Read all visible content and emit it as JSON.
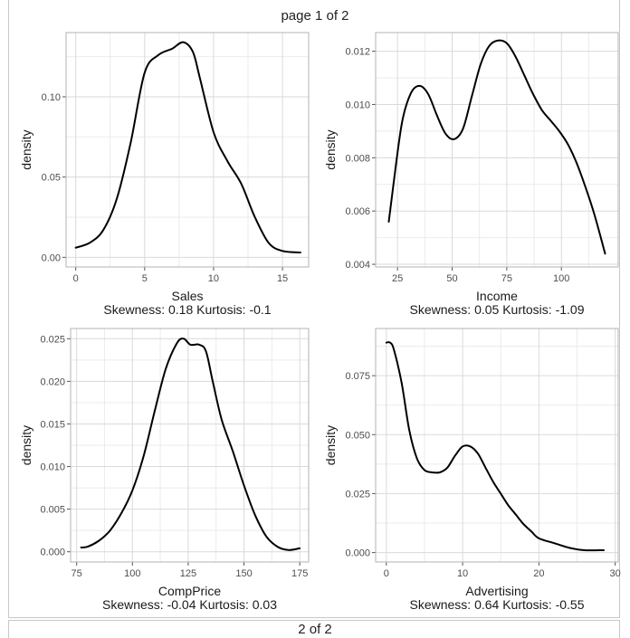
{
  "page": {
    "title": "page 1 of 2",
    "next_page_label": "2 of 2"
  },
  "chart_data": [
    {
      "type": "line",
      "title": "",
      "xlabel": "Sales",
      "ylabel": "density",
      "subtitle": "Skewness: 0.18 Kurtosis: -0.1",
      "xlim": [
        -0.7,
        16.9
      ],
      "ylim": [
        -0.006,
        0.14
      ],
      "xticks": [
        0,
        5,
        10,
        15
      ],
      "xtick_labels": [
        "0",
        "5",
        "10",
        "15"
      ],
      "yticks": [
        0.0,
        0.05,
        0.1
      ],
      "ytick_labels": [
        "0.00",
        "0.05",
        "0.10"
      ],
      "x": [
        0,
        1,
        2,
        3,
        4,
        5,
        6,
        7,
        7.8,
        8.5,
        9,
        10,
        11,
        12,
        13,
        14,
        15,
        16.3
      ],
      "y": [
        0.006,
        0.009,
        0.017,
        0.037,
        0.072,
        0.115,
        0.126,
        0.13,
        0.134,
        0.128,
        0.112,
        0.078,
        0.06,
        0.046,
        0.025,
        0.009,
        0.004,
        0.003
      ]
    },
    {
      "type": "line",
      "title": "",
      "xlabel": "Income",
      "ylabel": "density",
      "subtitle": "Skewness: 0.05 Kurtosis: -1.09",
      "xlim": [
        15,
        126
      ],
      "ylim": [
        0.0039,
        0.0127
      ],
      "xticks": [
        25,
        50,
        75,
        100
      ],
      "xtick_labels": [
        "25",
        "50",
        "75",
        "100"
      ],
      "yticks": [
        0.004,
        0.006,
        0.008,
        0.01,
        0.012
      ],
      "ytick_labels": [
        "0.004",
        "0.006",
        "0.008",
        "0.010",
        "0.012"
      ],
      "x": [
        21,
        23,
        27,
        31,
        35,
        39,
        43,
        47,
        51,
        55,
        59,
        63,
        67,
        71,
        75,
        79,
        83,
        87,
        91,
        95,
        99,
        103,
        107,
        111,
        115,
        120
      ],
      "y": [
        0.0056,
        0.0069,
        0.0093,
        0.0104,
        0.0107,
        0.0104,
        0.0096,
        0.0089,
        0.0087,
        0.0091,
        0.0103,
        0.0115,
        0.0122,
        0.0124,
        0.0123,
        0.0118,
        0.0111,
        0.0104,
        0.0098,
        0.0094,
        0.009,
        0.0085,
        0.0078,
        0.0069,
        0.0059,
        0.0044
      ]
    },
    {
      "type": "line",
      "title": "",
      "xlabel": "CompPrice",
      "ylabel": "density",
      "subtitle": "Skewness: -0.04 Kurtosis: 0.03",
      "xlim": [
        72.3,
        179
      ],
      "ylim": [
        -0.0012,
        0.0262
      ],
      "xticks": [
        75,
        100,
        125,
        150,
        175
      ],
      "xtick_labels": [
        "75",
        "100",
        "125",
        "150",
        "175"
      ],
      "yticks": [
        0.0,
        0.005,
        0.01,
        0.015,
        0.02,
        0.025
      ],
      "ytick_labels": [
        "0.000",
        "0.005",
        "0.010",
        "0.015",
        "0.020",
        "0.025"
      ],
      "x": [
        77,
        80,
        85,
        90,
        95,
        100,
        105,
        110,
        115,
        120,
        123,
        126,
        130,
        133,
        136,
        140,
        145,
        150,
        155,
        160,
        165,
        170,
        175
      ],
      "y": [
        0.0005,
        0.0006,
        0.0013,
        0.0025,
        0.0045,
        0.0072,
        0.0112,
        0.0165,
        0.0215,
        0.0245,
        0.025,
        0.0243,
        0.0243,
        0.0235,
        0.02,
        0.0155,
        0.0118,
        0.0078,
        0.0043,
        0.0018,
        0.0006,
        0.0002,
        0.0004
      ]
    },
    {
      "type": "line",
      "title": "",
      "xlabel": "Advertising",
      "ylabel": "density",
      "subtitle": "Skewness: 0.64 Kurtosis: -0.55",
      "xlim": [
        -1.4,
        30.4
      ],
      "ylim": [
        -0.004,
        0.095
      ],
      "xticks": [
        0,
        10,
        20,
        30
      ],
      "xtick_labels": [
        "0",
        "10",
        "20",
        "30"
      ],
      "yticks": [
        0.0,
        0.025,
        0.05,
        0.075
      ],
      "ytick_labels": [
        "0.000",
        "0.025",
        "0.050",
        "0.075"
      ],
      "x": [
        0,
        0.5,
        1,
        2,
        3,
        4,
        5,
        6,
        7,
        8,
        9,
        10,
        11,
        12,
        13,
        14,
        15,
        16,
        17,
        18,
        19,
        20,
        22,
        24,
        26,
        28.5
      ],
      "y": [
        0.089,
        0.089,
        0.086,
        0.072,
        0.052,
        0.04,
        0.035,
        0.034,
        0.034,
        0.036,
        0.041,
        0.045,
        0.045,
        0.042,
        0.036,
        0.03,
        0.025,
        0.02,
        0.016,
        0.012,
        0.009,
        0.006,
        0.004,
        0.002,
        0.001,
        0.001
      ]
    }
  ]
}
